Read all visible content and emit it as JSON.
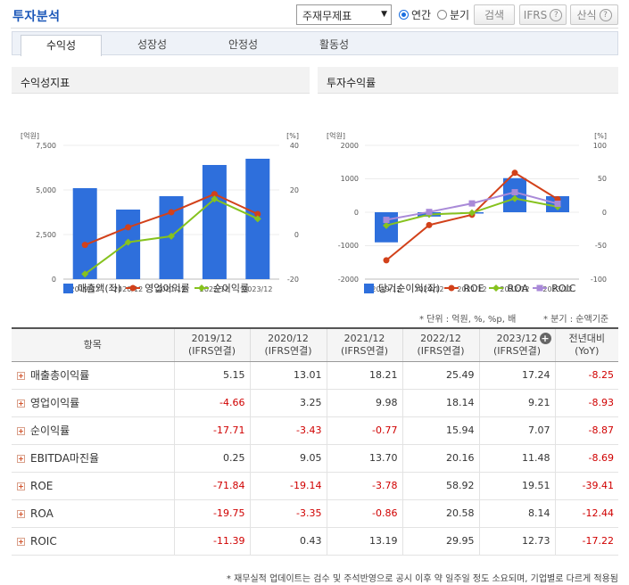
{
  "header": {
    "title": "투자분석",
    "select_value": "주재무제표",
    "radio_annual": "연간",
    "radio_quarter": "분기",
    "search_button": "검색",
    "ifrs_button": "IFRS",
    "formula_button": "산식"
  },
  "tabs": [
    "수익성",
    "성장성",
    "안정성",
    "활동성"
  ],
  "left_chart": {
    "panel_title": "수익성지표",
    "left_unit": "[억원]",
    "right_unit": "[%]",
    "left_ticks": [
      "7,500",
      "5,000",
      "2,500",
      "0"
    ],
    "right_ticks": [
      "40",
      "20",
      "0",
      "-20"
    ],
    "legend": [
      "매출액(좌)",
      "영업이익률",
      "순이익률"
    ]
  },
  "right_chart": {
    "panel_title": "투자수익률",
    "left_unit": "[억원]",
    "right_unit": "[%]",
    "left_ticks": [
      "2000",
      "1000",
      "0",
      "-1000",
      "-2000"
    ],
    "right_ticks": [
      "100",
      "50",
      "0",
      "-50",
      "-100"
    ],
    "legend": [
      "당기순이익(좌)",
      "ROE",
      "ROA",
      "ROIC"
    ]
  },
  "chart_data": [
    {
      "type": "bar",
      "categories": [
        "2019/12",
        "2020/12",
        "2021/12",
        "2022/12",
        "2023/12"
      ],
      "ylim_left": [
        0,
        7500
      ],
      "ylim_right": [
        -20,
        40
      ],
      "series": [
        {
          "name": "매출액(좌)",
          "kind": "bar",
          "axis": "left",
          "values": [
            5100,
            3900,
            4650,
            6400,
            6750
          ],
          "color": "#2e6fdc"
        },
        {
          "name": "영업이익률",
          "kind": "line",
          "axis": "right",
          "values": [
            -4.66,
            3.25,
            9.98,
            18.14,
            9.21
          ],
          "color": "#d2411a"
        },
        {
          "name": "순이익률",
          "kind": "line",
          "axis": "right",
          "values": [
            -17.71,
            -3.43,
            -0.77,
            15.94,
            7.07
          ],
          "color": "#86c21e"
        }
      ]
    },
    {
      "type": "bar",
      "categories": [
        "2019/12",
        "2020/12",
        "2021/12",
        "2022/12",
        "2023/12"
      ],
      "ylim_left": [
        -2000,
        2000
      ],
      "ylim_right": [
        -100,
        100
      ],
      "series": [
        {
          "name": "당기순이익(좌)",
          "kind": "bar",
          "axis": "left",
          "values": [
            -900,
            -130,
            -40,
            1020,
            480
          ],
          "color": "#2e6fdc"
        },
        {
          "name": "ROE",
          "kind": "line",
          "axis": "right",
          "values": [
            -71.84,
            -19.14,
            -3.78,
            58.92,
            19.51
          ],
          "color": "#d2411a"
        },
        {
          "name": "ROA",
          "kind": "line",
          "axis": "right",
          "values": [
            -19.75,
            -3.35,
            -0.86,
            20.58,
            8.14
          ],
          "color": "#86c21e"
        },
        {
          "name": "ROIC",
          "kind": "line",
          "axis": "right",
          "values": [
            -11.39,
            0.43,
            13.19,
            29.95,
            12.73
          ],
          "color": "#a98ad8"
        }
      ]
    }
  ],
  "notes": {
    "unit": "* 단위 : 억원, %, %p, 배",
    "quarter": "* 분기 : 순액기준",
    "footer": "* 재무실적 업데이트는 검수 및 주석반영으로 공시 이후 약 일주일 정도 소요되며, 기업별로 다르게 적용됨"
  },
  "table": {
    "head_item": "항목",
    "columns": [
      {
        "year": "2019/12",
        "sub": "(IFRS연결)"
      },
      {
        "year": "2020/12",
        "sub": "(IFRS연결)"
      },
      {
        "year": "2021/12",
        "sub": "(IFRS연결)"
      },
      {
        "year": "2022/12",
        "sub": "(IFRS연결)"
      },
      {
        "year": "2023/12",
        "sub": "(IFRS연결)"
      }
    ],
    "yoy_head": "전년대비",
    "yoy_sub": "(YoY)",
    "rows": [
      {
        "label": "매출총이익률",
        "values": [
          "5.15",
          "13.01",
          "18.21",
          "25.49",
          "17.24"
        ],
        "yoy": "-8.25"
      },
      {
        "label": "영업이익률",
        "values": [
          "-4.66",
          "3.25",
          "9.98",
          "18.14",
          "9.21"
        ],
        "yoy": "-8.93"
      },
      {
        "label": "순이익률",
        "values": [
          "-17.71",
          "-3.43",
          "-0.77",
          "15.94",
          "7.07"
        ],
        "yoy": "-8.87"
      },
      {
        "label": "EBITDA마진율",
        "values": [
          "0.25",
          "9.05",
          "13.70",
          "20.16",
          "11.48"
        ],
        "yoy": "-8.69"
      },
      {
        "label": "ROE",
        "values": [
          "-71.84",
          "-19.14",
          "-3.78",
          "58.92",
          "19.51"
        ],
        "yoy": "-39.41"
      },
      {
        "label": "ROA",
        "values": [
          "-19.75",
          "-3.35",
          "-0.86",
          "20.58",
          "8.14"
        ],
        "yoy": "-12.44"
      },
      {
        "label": "ROIC",
        "values": [
          "-11.39",
          "0.43",
          "13.19",
          "29.95",
          "12.73"
        ],
        "yoy": "-17.22"
      }
    ]
  }
}
